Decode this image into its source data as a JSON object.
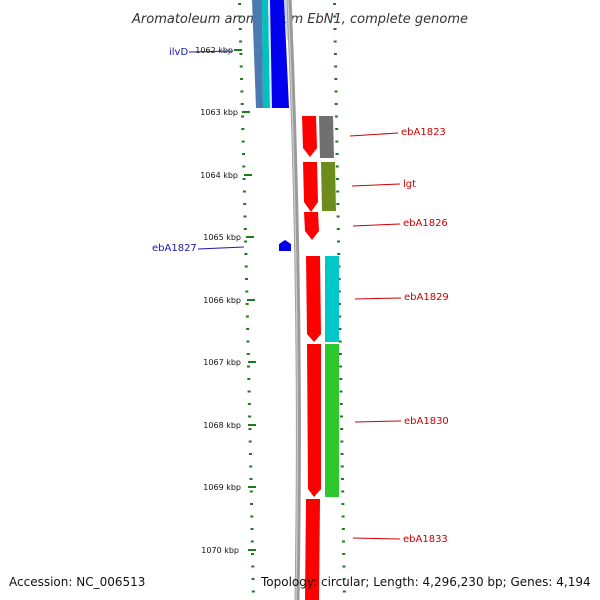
{
  "title": "Aromatoleum aromaticum EbN1, complete genome",
  "accession_text": "Accession: NC_006513",
  "topology_text": "Topology: circular; Length: 4,296,230 bp; Genes: 4,194",
  "ticks": [
    "1062 kbp",
    "1063 kbp",
    "1064 kbp",
    "1065 kbp",
    "1066 kbp",
    "1067 kbp",
    "1068 kbp",
    "1069 kbp",
    "1070 kbp"
  ],
  "gene_labels": {
    "ilvD": "ilvD",
    "ebA1823": "ebA1823",
    "lgt": "lgt",
    "ebA1826": "ebA1826",
    "ebA1827": "ebA1827",
    "ebA1829": "ebA1829",
    "ebA1830": "ebA1830",
    "ebA1833": "ebA1833"
  },
  "colors": {
    "forward_cds": "#ff0000",
    "reverse_cds": "#0000ff",
    "label_red": "#cc0000",
    "label_blue": "#1a1ab0",
    "tick_green": "#1e7a1e",
    "backbone": "#8a8a8a",
    "gray_feature": "#707070",
    "olive_feature": "#6e8c1e",
    "cyan_feature": "#00c8c8",
    "green_feature": "#2ec82e"
  }
}
